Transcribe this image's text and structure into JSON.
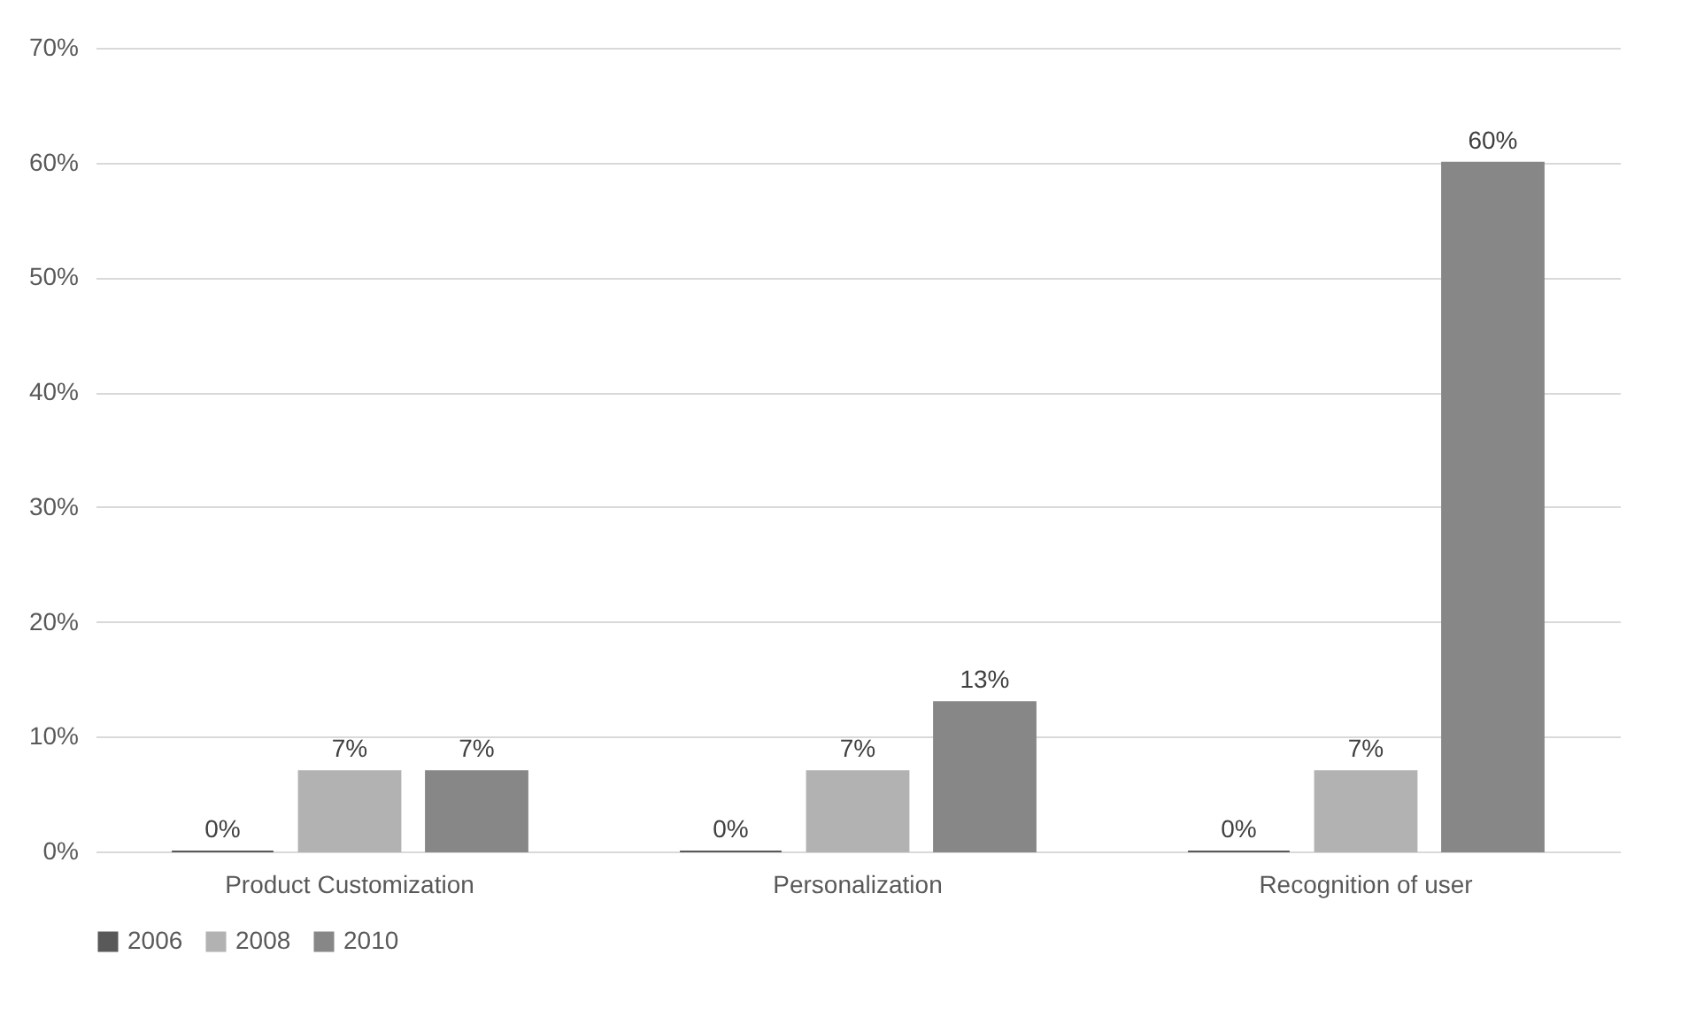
{
  "chart_data": {
    "type": "bar",
    "categories": [
      "Product Customization",
      "Personalization",
      "Recognition of user"
    ],
    "series": [
      {
        "name": "2006",
        "color": "#595959",
        "values": [
          0,
          0,
          0
        ],
        "value_labels": [
          "0%",
          "0%",
          "0%"
        ]
      },
      {
        "name": "2008",
        "color": "#b2b2b2",
        "values": [
          7,
          7,
          7
        ],
        "value_labels": [
          "7%",
          "7%",
          "7%"
        ]
      },
      {
        "name": "2010",
        "color": "#878787",
        "values": [
          7,
          13,
          60
        ],
        "value_labels": [
          "7%",
          "13%",
          "60%"
        ]
      }
    ],
    "ylim": [
      0,
      70
    ],
    "yticks": [
      {
        "value": 0,
        "label": "0%"
      },
      {
        "value": 10,
        "label": "10%"
      },
      {
        "value": 20,
        "label": "20%"
      },
      {
        "value": 30,
        "label": "30%"
      },
      {
        "value": 40,
        "label": "40%"
      },
      {
        "value": 50,
        "label": "50%"
      },
      {
        "value": 60,
        "label": "60%"
      },
      {
        "value": 70,
        "label": "70%"
      }
    ],
    "grid": "y",
    "legend": "bottom"
  }
}
